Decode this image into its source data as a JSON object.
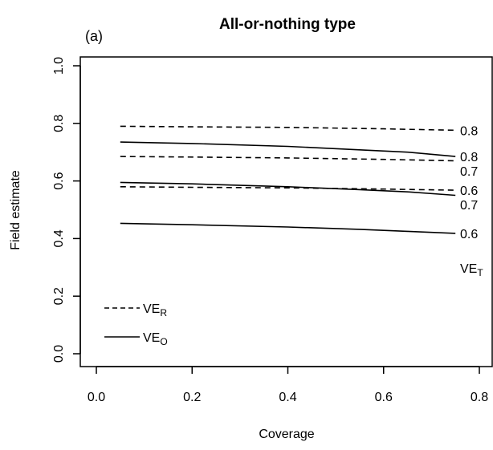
{
  "chart_data": {
    "type": "line",
    "title": "All-or-nothing type",
    "panel_label": "(a)",
    "xlabel": "Coverage",
    "ylabel": "Field estimate",
    "xlim": [
      0.0,
      0.8
    ],
    "ylim": [
      0.0,
      1.0
    ],
    "x_ticks": [
      "0.0",
      "0.2",
      "0.4",
      "0.6",
      "0.8"
    ],
    "y_ticks": [
      "0.0",
      "0.2",
      "0.4",
      "0.6",
      "0.8",
      "1.0"
    ],
    "grid": false,
    "legend": {
      "position": "bottom-left",
      "entries": [
        {
          "prefix": "VE",
          "sub": "R",
          "style": "dashed"
        },
        {
          "prefix": "VE",
          "sub": "O",
          "style": "solid"
        }
      ]
    },
    "ve_t_label": {
      "prefix": "VE",
      "sub": "T"
    },
    "series": [
      {
        "measure": "VE_R",
        "style": "dashed",
        "label": "0.8",
        "x": [
          0.05,
          0.2,
          0.4,
          0.6,
          0.75
        ],
        "y": [
          0.79,
          0.788,
          0.786,
          0.781,
          0.776
        ]
      },
      {
        "measure": "VE_R",
        "style": "dashed",
        "label": "0.7",
        "x": [
          0.05,
          0.2,
          0.4,
          0.6,
          0.75
        ],
        "y": [
          0.685,
          0.683,
          0.68,
          0.675,
          0.67
        ]
      },
      {
        "measure": "VE_R",
        "style": "dashed",
        "label": "0.6",
        "x": [
          0.05,
          0.2,
          0.4,
          0.6,
          0.75
        ],
        "y": [
          0.58,
          0.578,
          0.576,
          0.572,
          0.568
        ]
      },
      {
        "measure": "VE_O",
        "style": "solid",
        "label": "0.8",
        "x": [
          0.05,
          0.2,
          0.4,
          0.55,
          0.65,
          0.75
        ],
        "y": [
          0.735,
          0.73,
          0.72,
          0.708,
          0.7,
          0.685
        ]
      },
      {
        "measure": "VE_O",
        "style": "solid",
        "label": "0.7",
        "x": [
          0.05,
          0.2,
          0.4,
          0.55,
          0.65,
          0.75
        ],
        "y": [
          0.595,
          0.59,
          0.58,
          0.57,
          0.562,
          0.55
        ]
      },
      {
        "measure": "VE_O",
        "style": "solid",
        "label": "0.6",
        "x": [
          0.05,
          0.2,
          0.4,
          0.55,
          0.65,
          0.75
        ],
        "y": [
          0.453,
          0.448,
          0.44,
          0.432,
          0.425,
          0.418
        ]
      }
    ]
  }
}
